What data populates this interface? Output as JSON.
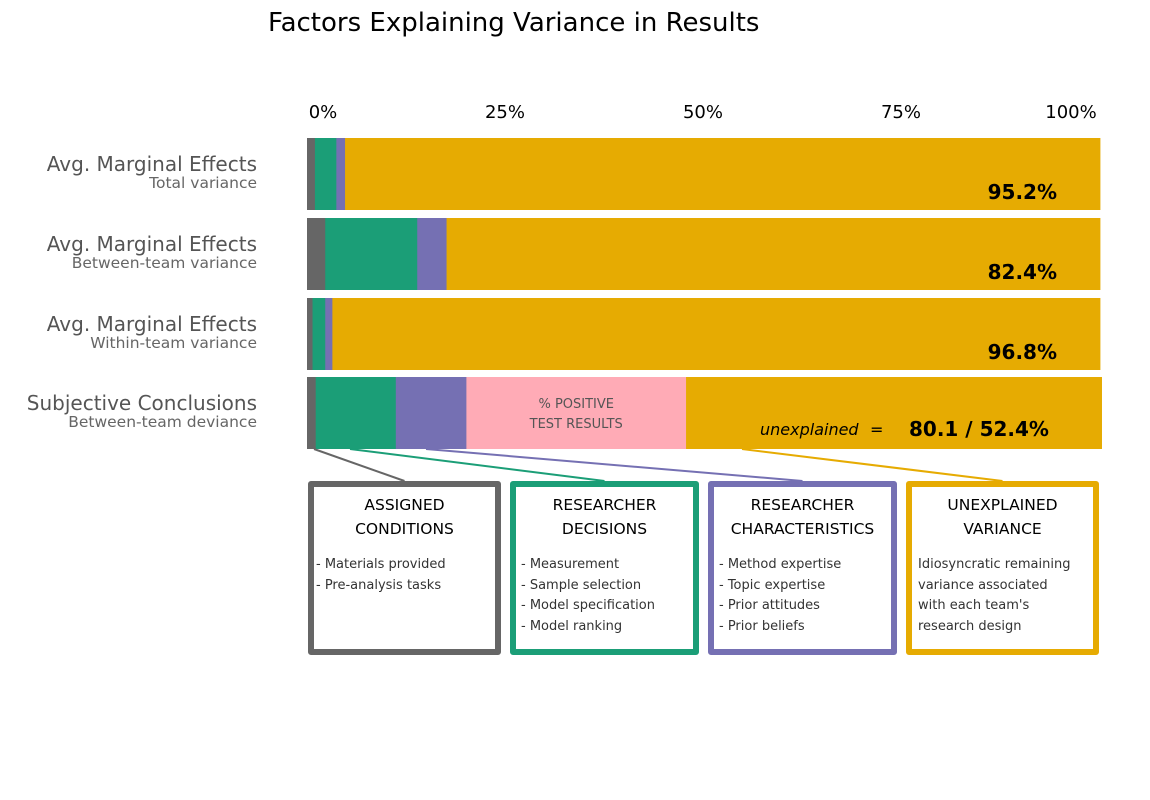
{
  "chart_data": {
    "type": "bar",
    "orientation": "horizontal-stacked-100",
    "title": "Factors Explaining Variance in Results",
    "x_ticks": [
      "0%",
      "25%",
      "50%",
      "75%",
      "100%"
    ],
    "xlim": [
      0,
      100
    ],
    "segment_order": [
      "assigned",
      "decisions",
      "characteristics",
      "positive_test",
      "unexplained"
    ],
    "colors": {
      "assigned": "#666666",
      "decisions": "#1b9e77",
      "characteristics": "#7570b3",
      "positive_test": "#ffabb6",
      "unexplained": "#e6ab02"
    },
    "rows": [
      {
        "label": "Avg. Marginal Effects",
        "sublabel": "Total variance",
        "values": {
          "assigned": 1.0,
          "decisions": 2.7,
          "characteristics": 1.1,
          "positive_test": 0,
          "unexplained": 95.2
        },
        "pct_label": "95.2%"
      },
      {
        "label": "Avg. Marginal Effects",
        "sublabel": "Between-team variance",
        "values": {
          "assigned": 2.3,
          "decisions": 11.6,
          "characteristics": 3.7,
          "positive_test": 0,
          "unexplained": 82.4
        },
        "pct_label": "82.4%"
      },
      {
        "label": "Avg. Marginal Effects",
        "sublabel": "Within-team variance",
        "values": {
          "assigned": 0.7,
          "decisions": 1.6,
          "characteristics": 0.9,
          "positive_test": 0,
          "unexplained": 96.8
        },
        "pct_label": "96.8%"
      },
      {
        "label": "Subjective Conclusions",
        "sublabel": "Between-team deviance",
        "values": {
          "assigned": 1.1,
          "decisions": 10.1,
          "characteristics": 8.9,
          "positive_test": 27.7,
          "unexplained": 52.4
        },
        "pct_label": "80.1 / 52.4%",
        "pct_prefix": "unexplained",
        "pct_prefix_eq": "=",
        "segment_labels": {
          "positive_test": [
            "% POSITIVE",
            "TEST RESULTS"
          ]
        }
      }
    ]
  },
  "legend": [
    {
      "key": "assigned",
      "title": [
        "ASSIGNED",
        "CONDITIONS"
      ],
      "items": [
        "- Materials provided",
        "- Pre-analysis tasks"
      ]
    },
    {
      "key": "decisions",
      "title": [
        "RESEARCHER",
        "DECISIONS"
      ],
      "items": [
        "- Measurement",
        "- Sample selection",
        "- Model specification",
        "- Model ranking"
      ]
    },
    {
      "key": "characteristics",
      "title": [
        "RESEARCHER",
        "CHARACTERISTICS"
      ],
      "items": [
        "- Method expertise",
        "- Topic expertise",
        "- Prior attitudes",
        "- Prior beliefs"
      ]
    },
    {
      "key": "unexplained",
      "title": [
        "UNEXPLAINED",
        "VARIANCE"
      ],
      "text": [
        "Idiosyncratic remaining",
        "variance associated",
        "with each team's",
        "research design"
      ]
    }
  ]
}
